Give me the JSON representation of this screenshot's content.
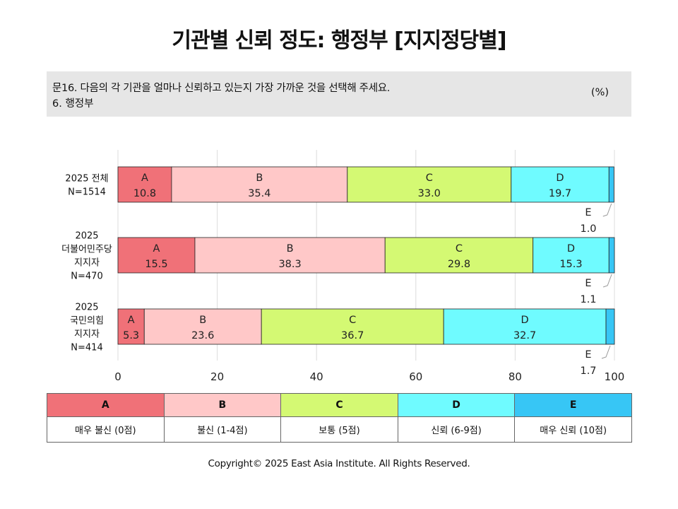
{
  "title": "기관별 신뢰 정도: 행정부 [지지정당별]",
  "question": {
    "line1": "문16. 다음의 각 기관을 얼마나 신뢰하고 있는지 가장 가까운 것을 선택해 주세요.",
    "line2": "6. 행정부",
    "unit": "(%)"
  },
  "legend": [
    {
      "key": "A",
      "desc": "매우 불신 (0점)",
      "color": "#f07178"
    },
    {
      "key": "B",
      "desc": "불신 (1-4점)",
      "color": "#ffc8c8"
    },
    {
      "key": "C",
      "desc": "보통 (5점)",
      "color": "#d4f973"
    },
    {
      "key": "D",
      "desc": "신뢰 (6-9점)",
      "color": "#6ffbff"
    },
    {
      "key": "E",
      "desc": "매우 신뢰 (10점)",
      "color": "#37c6f5"
    }
  ],
  "chart_data": {
    "type": "bar",
    "orientation": "horizontal",
    "stacked": true,
    "categories": [
      [
        "2025 전체",
        "N=1514"
      ],
      [
        "2025",
        "더불어민주당",
        "지지자",
        "N=470"
      ],
      [
        "2025",
        "국민의힘",
        "지지자",
        "N=414"
      ]
    ],
    "series": [
      {
        "name": "A",
        "values": [
          10.8,
          15.5,
          5.3
        ]
      },
      {
        "name": "B",
        "values": [
          35.4,
          38.3,
          23.6
        ]
      },
      {
        "name": "C",
        "values": [
          33.0,
          29.8,
          36.7
        ]
      },
      {
        "name": "D",
        "values": [
          19.7,
          15.3,
          32.7
        ]
      },
      {
        "name": "E",
        "values": [
          1.0,
          1.1,
          1.7
        ]
      }
    ],
    "xlim": [
      0,
      100
    ],
    "xticks": [
      0,
      20,
      40,
      60,
      80,
      100
    ],
    "grid": true
  },
  "copyright": "Copyright© 2025 East Asia Institute. All Rights Reserved."
}
